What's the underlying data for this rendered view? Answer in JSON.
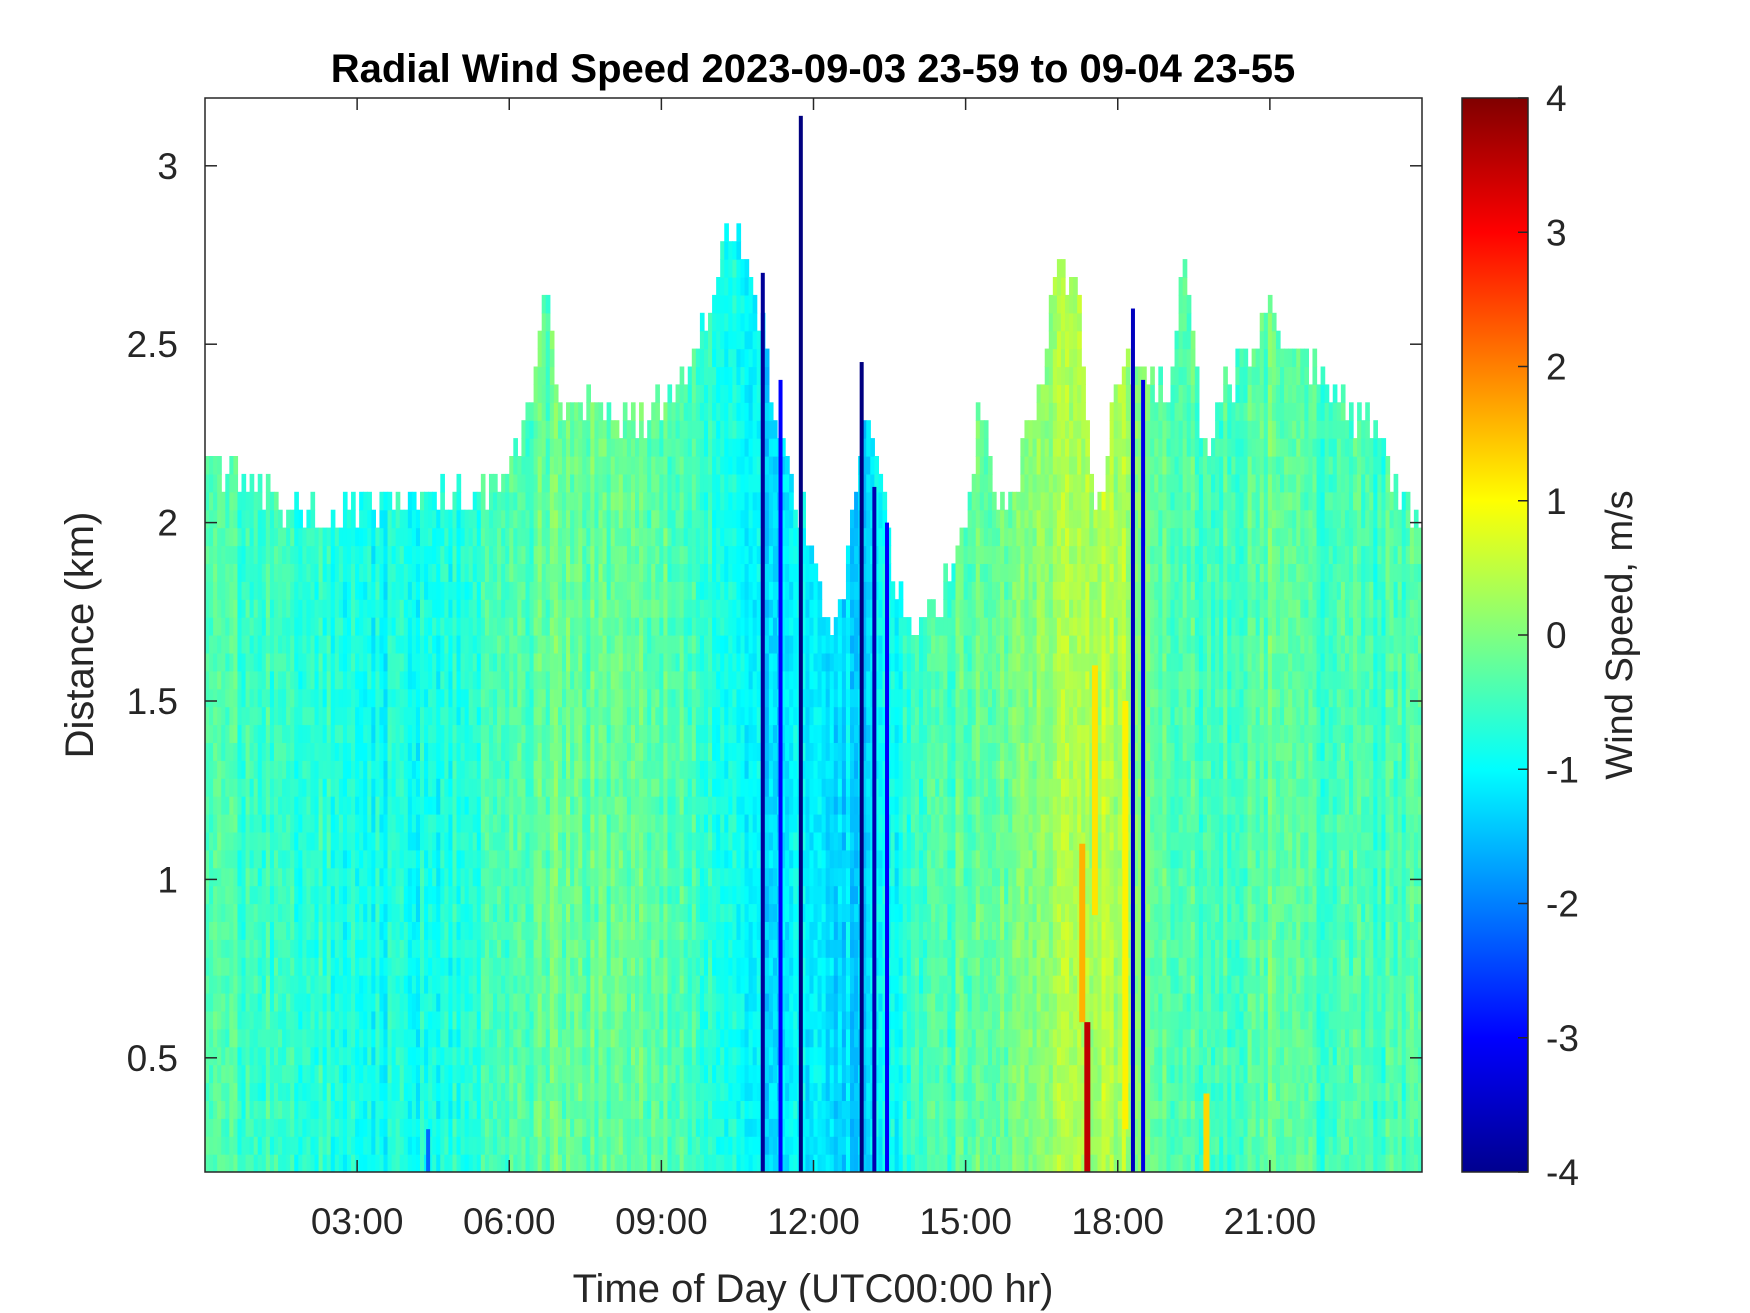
{
  "chart_data": {
    "type": "heatmap",
    "title": "Radial Wind Speed 2023-09-03 23-59 to 09-04 23-55",
    "xlabel": "Time of Day (UTC00:00 hr)",
    "ylabel": "Distance (km)",
    "colorbar_label": "Wind Speed, m/s",
    "colormap": "jet",
    "x_unit": "hours",
    "xlim": [
      0,
      24
    ],
    "ylim": [
      0.18,
      3.19
    ],
    "clim": [
      -4,
      4
    ],
    "x_ticks": [
      {
        "value": 3,
        "label": "03:00"
      },
      {
        "value": 6,
        "label": "06:00"
      },
      {
        "value": 9,
        "label": "09:00"
      },
      {
        "value": 12,
        "label": "12:00"
      },
      {
        "value": 15,
        "label": "15:00"
      },
      {
        "value": 18,
        "label": "18:00"
      },
      {
        "value": 21,
        "label": "21:00"
      }
    ],
    "y_ticks": [
      {
        "value": 0.5,
        "label": "0.5"
      },
      {
        "value": 1,
        "label": "1"
      },
      {
        "value": 1.5,
        "label": "1.5"
      },
      {
        "value": 2,
        "label": "2"
      },
      {
        "value": 2.5,
        "label": "2.5"
      },
      {
        "value": 3,
        "label": "3"
      }
    ],
    "colorbar_ticks": [
      {
        "value": 4,
        "label": "4"
      },
      {
        "value": 3,
        "label": "3"
      },
      {
        "value": 2,
        "label": "2"
      },
      {
        "value": 1,
        "label": "1"
      },
      {
        "value": 0,
        "label": "0"
      },
      {
        "value": -1,
        "label": "-1"
      },
      {
        "value": -2,
        "label": "-2"
      },
      {
        "value": -3,
        "label": "-3"
      },
      {
        "value": -4,
        "label": "-4"
      }
    ],
    "max_range_km_by_hour": {
      "x": [
        0,
        0.5,
        1,
        1.5,
        2,
        2.5,
        3,
        3.5,
        4,
        4.5,
        5,
        5.5,
        6,
        6.5,
        6.7,
        7,
        7.5,
        8,
        8.5,
        9,
        9.5,
        10,
        10.3,
        10.6,
        11,
        11.5,
        11.8,
        12,
        12.3,
        12.6,
        13,
        13.3,
        13.6,
        14,
        14.5,
        15,
        15.3,
        15.6,
        16,
        16.5,
        16.8,
        17.2,
        17.6,
        18,
        18.5,
        19,
        19.3,
        19.7,
        20,
        20.5,
        21,
        21.5,
        22,
        22.5,
        23,
        23.5,
        24
      ],
      "y": [
        2.15,
        2.1,
        2.05,
        2.03,
        2.0,
        2.0,
        2.0,
        2.02,
        2.05,
        2.05,
        2.05,
        2.05,
        2.15,
        2.35,
        2.7,
        2.3,
        2.3,
        2.25,
        2.25,
        2.3,
        2.4,
        2.6,
        2.8,
        2.75,
        2.5,
        2.1,
        2.0,
        1.85,
        1.7,
        1.75,
        2.3,
        2.2,
        1.8,
        1.7,
        1.75,
        1.95,
        2.3,
        2.0,
        2.1,
        2.35,
        2.75,
        2.6,
        2.0,
        2.4,
        2.4,
        2.3,
        2.75,
        2.15,
        2.3,
        2.45,
        2.55,
        2.45,
        2.4,
        2.3,
        2.25,
        2.05,
        2.0
      ]
    },
    "background_wind_by_hour": {
      "x": [
        0,
        1,
        2,
        3,
        4,
        5,
        6,
        7,
        8,
        9,
        10,
        11,
        12,
        13,
        14,
        15,
        16,
        17,
        18,
        19,
        20,
        21,
        22,
        23,
        24
      ],
      "y": [
        -0.3,
        -0.5,
        -0.6,
        -0.8,
        -0.9,
        -0.8,
        -0.4,
        -0.2,
        -0.3,
        -0.2,
        -0.6,
        -1.2,
        -1.1,
        -1.3,
        -0.6,
        -0.3,
        -0.1,
        0.3,
        0.4,
        -0.3,
        -0.5,
        -0.2,
        -0.5,
        -0.5,
        -0.4
      ]
    },
    "strong_negative_streaks": [
      {
        "time": 11.0,
        "value": -3.8,
        "top_km": 2.7
      },
      {
        "time": 11.35,
        "value": -3.0,
        "top_km": 2.4
      },
      {
        "time": 11.75,
        "value": -4.0,
        "top_km": 3.14
      },
      {
        "time": 12.95,
        "value": -4.0,
        "top_km": 2.45
      },
      {
        "time": 13.2,
        "value": -3.6,
        "top_km": 2.1
      },
      {
        "time": 13.45,
        "value": -3.0,
        "top_km": 2.0
      },
      {
        "time": 18.3,
        "value": -3.5,
        "top_km": 2.6
      },
      {
        "time": 18.5,
        "value": -3.2,
        "top_km": 2.4
      },
      {
        "time": 4.4,
        "value": -2.2,
        "top_km": 0.3
      }
    ],
    "positive_patches": [
      {
        "time": 17.4,
        "from_km": 0.18,
        "to_km": 0.6,
        "value": 3.5
      },
      {
        "time": 17.3,
        "from_km": 0.6,
        "to_km": 1.1,
        "value": 1.6
      },
      {
        "time": 17.55,
        "from_km": 0.9,
        "to_km": 1.6,
        "value": 1.2
      },
      {
        "time": 18.15,
        "from_km": 0.3,
        "to_km": 1.5,
        "value": 1.1
      },
      {
        "time": 19.75,
        "from_km": 0.18,
        "to_km": 0.4,
        "value": 1.3
      }
    ]
  }
}
